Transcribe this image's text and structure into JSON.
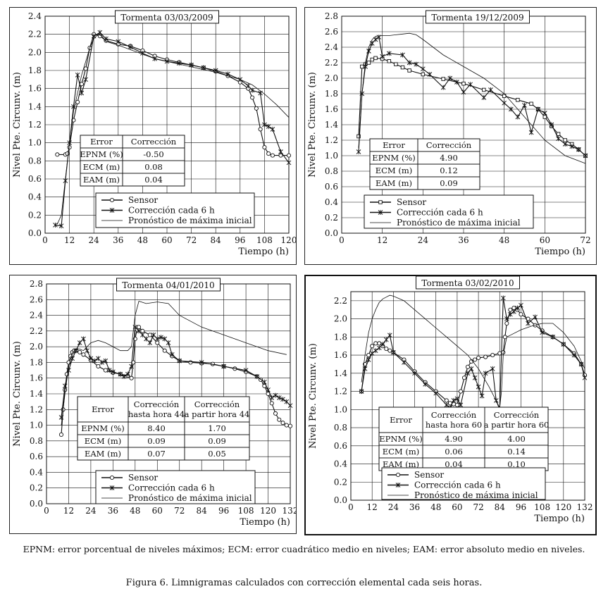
{
  "footnote": "EPNM: error porcentual de niveles máximos; ECM: error cuadrático medio en niveles; EAM: error absoluto medio en niveles.",
  "figure_caption": "Figura 6. Limnigramas calculados con corrección elemental cada seis horas.",
  "chart_data": [
    {
      "type": "line",
      "title": "Tormenta 03/03/2009",
      "xlabel": "Tiempo (h)",
      "ylabel": "Nivel Pte. Circunv. (m)",
      "xlim": [
        0,
        120
      ],
      "ylim": [
        0.0,
        2.4
      ],
      "xticks": [
        0,
        12,
        24,
        36,
        48,
        60,
        72,
        84,
        96,
        108,
        120
      ],
      "yticks": [
        0.0,
        0.2,
        0.4,
        0.6,
        0.8,
        1.0,
        1.2,
        1.4,
        1.6,
        1.8,
        2.0,
        2.2,
        2.4
      ],
      "legend": [
        "Sensor",
        "Corrección cada 6 h",
        "Pronóstico de máxima inicial"
      ],
      "error_table": {
        "headers": [
          "Error",
          "Corrección"
        ],
        "rows": [
          [
            "EPNM (%)",
            "-0.50"
          ],
          [
            "ECM (m)",
            "0.08"
          ],
          [
            "EAM (m)",
            "0.04"
          ]
        ]
      },
      "series": [
        {
          "name": "Sensor",
          "marker": "circle",
          "x": [
            6,
            10,
            11,
            12,
            14,
            16,
            18,
            20,
            22,
            24,
            27,
            30,
            36,
            42,
            48,
            54,
            60,
            66,
            72,
            78,
            84,
            90,
            96,
            100,
            102,
            104,
            106,
            108,
            110,
            112,
            116,
            120
          ],
          "y": [
            0.87,
            0.87,
            0.88,
            0.95,
            1.25,
            1.45,
            1.65,
            1.82,
            2.05,
            2.2,
            2.18,
            2.13,
            2.09,
            2.07,
            2.02,
            1.96,
            1.92,
            1.89,
            1.86,
            1.83,
            1.79,
            1.74,
            1.67,
            1.6,
            1.5,
            1.38,
            1.15,
            0.95,
            0.88,
            0.86,
            0.86,
            0.86
          ]
        },
        {
          "name": "Corrección cada 6 h",
          "marker": "x",
          "x": [
            5,
            8,
            10,
            12,
            14,
            16,
            18,
            20,
            24,
            27,
            30,
            36,
            42,
            48,
            54,
            60,
            66,
            72,
            78,
            84,
            90,
            96,
            100,
            102,
            106,
            108,
            110,
            112,
            116,
            120
          ],
          "y": [
            0.09,
            0.08,
            0.58,
            1.0,
            1.4,
            1.75,
            1.55,
            1.7,
            2.18,
            2.22,
            2.15,
            2.12,
            2.06,
            1.99,
            1.93,
            1.9,
            1.88,
            1.86,
            1.83,
            1.8,
            1.76,
            1.7,
            1.63,
            1.58,
            1.55,
            1.2,
            1.18,
            1.15,
            0.9,
            0.78
          ]
        },
        {
          "name": "Pronóstico de máxima inicial",
          "marker": "none",
          "x": [
            6,
            8,
            10,
            12,
            14,
            16,
            18,
            20,
            22,
            24,
            26,
            28,
            30,
            36,
            42,
            48,
            54,
            60,
            66,
            72,
            78,
            84,
            90,
            96,
            102,
            108,
            114,
            120
          ],
          "y": [
            0.1,
            0.2,
            0.6,
            1.0,
            1.35,
            1.55,
            1.75,
            1.9,
            2.05,
            2.15,
            2.2,
            2.18,
            2.12,
            2.08,
            2.03,
            1.98,
            1.93,
            1.9,
            1.87,
            1.84,
            1.81,
            1.78,
            1.74,
            1.7,
            1.64,
            1.54,
            1.42,
            1.28
          ]
        }
      ]
    },
    {
      "type": "line",
      "title": "Tormenta 19/12/2009",
      "xlabel": "Tiempo (h)",
      "ylabel": "Nivel Pte. Circunv. (m)",
      "xlim": [
        0,
        72
      ],
      "ylim": [
        0.0,
        2.8
      ],
      "xticks": [
        0,
        12,
        24,
        36,
        48,
        60,
        72
      ],
      "yticks": [
        0.0,
        0.2,
        0.4,
        0.6,
        0.8,
        1.0,
        1.2,
        1.4,
        1.6,
        1.8,
        2.0,
        2.2,
        2.4,
        2.6,
        2.8
      ],
      "legend": [
        "Sensor",
        "Corrección cada 6 h",
        "Pronóstico de máxima inicial"
      ],
      "error_table": {
        "headers": [
          "Error",
          "Corrección"
        ],
        "rows": [
          [
            "EPNM (%)",
            "4.90"
          ],
          [
            "ECM (m)",
            "0.12"
          ],
          [
            "EAM (m)",
            "0.09"
          ]
        ]
      },
      "series": [
        {
          "name": "Sensor",
          "marker": "square",
          "x": [
            5,
            6,
            7,
            8,
            9,
            10,
            12,
            14,
            16,
            18,
            20,
            24,
            30,
            36,
            42,
            48,
            52,
            56,
            58,
            60,
            62,
            64,
            66,
            68,
            70,
            72
          ],
          "y": [
            1.25,
            2.15,
            2.18,
            2.2,
            2.24,
            2.26,
            2.25,
            2.22,
            2.18,
            2.14,
            2.1,
            2.05,
            1.99,
            1.93,
            1.85,
            1.77,
            1.72,
            1.67,
            1.6,
            1.5,
            1.38,
            1.28,
            1.2,
            1.15,
            1.08,
            1.0
          ]
        },
        {
          "name": "Corrección cada 6 h",
          "marker": "x",
          "x": [
            5,
            6,
            7,
            8,
            9,
            10,
            11,
            12,
            14,
            18,
            20,
            22,
            24,
            26,
            30,
            32,
            34,
            36,
            38,
            42,
            44,
            48,
            50,
            52,
            54,
            56,
            58,
            60,
            62,
            64,
            66,
            68,
            70,
            72
          ],
          "y": [
            1.05,
            1.8,
            2.15,
            2.35,
            2.45,
            2.5,
            2.53,
            2.28,
            2.32,
            2.3,
            2.2,
            2.18,
            2.12,
            2.05,
            1.88,
            2.0,
            1.95,
            1.82,
            1.92,
            1.75,
            1.85,
            1.68,
            1.6,
            1.5,
            1.65,
            1.3,
            1.6,
            1.55,
            1.4,
            1.22,
            1.15,
            1.12,
            1.08,
            1.0
          ]
        },
        {
          "name": "Pronóstico de máxima inicial",
          "marker": "none",
          "x": [
            5,
            6,
            7,
            8,
            9,
            10,
            12,
            14,
            16,
            18,
            20,
            22,
            24,
            30,
            36,
            42,
            48,
            54,
            60,
            66,
            72
          ],
          "y": [
            1.1,
            1.8,
            2.2,
            2.4,
            2.5,
            2.54,
            2.55,
            2.55,
            2.56,
            2.57,
            2.58,
            2.56,
            2.5,
            2.3,
            2.15,
            2.0,
            1.8,
            1.5,
            1.2,
            1.0,
            0.9
          ]
        }
      ]
    },
    {
      "type": "line",
      "title": "Tormenta 04/01/2010",
      "xlabel": "Tiempo (h)",
      "ylabel": "Nivel Pte. Circunv. (m)",
      "xlim": [
        0,
        132
      ],
      "ylim": [
        0.0,
        2.8
      ],
      "xticks": [
        0,
        12,
        24,
        36,
        48,
        60,
        72,
        84,
        96,
        108,
        120,
        132
      ],
      "yticks": [
        0.0,
        0.2,
        0.4,
        0.6,
        0.8,
        1.0,
        1.2,
        1.4,
        1.6,
        1.8,
        2.0,
        2.2,
        2.4,
        2.6,
        2.8
      ],
      "legend": [
        "Sensor",
        "Corrección cada 6 h",
        "Pronóstico de máxima inicial"
      ],
      "error_table": {
        "headers": [
          "Error",
          "Corrección\nhasta hora 44",
          "Corrección\na partir hora 44"
        ],
        "rows": [
          [
            "EPNM (%)",
            "8.40",
            "1.70"
          ],
          [
            "ECM (m)",
            "0.09",
            "0.09"
          ],
          [
            "EAM (m)",
            "0.07",
            "0.05"
          ]
        ]
      },
      "series": [
        {
          "name": "Sensor",
          "marker": "circle",
          "x": [
            8,
            9,
            10,
            11,
            12,
            13,
            14,
            15,
            16,
            18,
            20,
            24,
            28,
            32,
            36,
            40,
            44,
            46,
            47,
            48,
            49,
            50,
            52,
            56,
            60,
            64,
            68,
            72,
            78,
            84,
            90,
            96,
            102,
            108,
            114,
            116,
            118,
            120,
            122,
            124,
            126,
            128,
            130,
            132
          ],
          "y": [
            0.88,
            1.2,
            1.45,
            1.65,
            1.8,
            1.88,
            1.93,
            1.95,
            1.95,
            1.93,
            1.9,
            1.83,
            1.75,
            1.7,
            1.67,
            1.65,
            1.63,
            1.6,
            1.8,
            2.1,
            2.22,
            2.25,
            2.2,
            2.15,
            2.05,
            1.95,
            1.88,
            1.82,
            1.8,
            1.79,
            1.78,
            1.75,
            1.72,
            1.68,
            1.62,
            1.58,
            1.5,
            1.4,
            1.28,
            1.15,
            1.07,
            1.03,
            1.0,
            0.99
          ]
        },
        {
          "name": "Corrección cada 6 h",
          "marker": "x",
          "x": [
            8,
            10,
            12,
            14,
            16,
            18,
            20,
            22,
            24,
            26,
            28,
            30,
            32,
            34,
            36,
            40,
            42,
            44,
            46,
            48,
            50,
            52,
            54,
            56,
            58,
            60,
            62,
            64,
            66,
            68,
            72,
            84,
            96,
            108,
            114,
            118,
            120,
            122,
            124,
            126,
            128,
            130,
            132
          ],
          "y": [
            1.1,
            1.5,
            1.7,
            1.85,
            1.95,
            2.05,
            2.1,
            1.95,
            1.85,
            1.82,
            1.85,
            1.8,
            1.82,
            1.7,
            1.68,
            1.65,
            1.62,
            1.65,
            1.75,
            2.25,
            2.2,
            2.15,
            2.1,
            2.05,
            2.15,
            2.1,
            2.12,
            2.1,
            2.05,
            1.9,
            1.82,
            1.8,
            1.75,
            1.7,
            1.62,
            1.55,
            1.45,
            1.35,
            1.38,
            1.35,
            1.33,
            1.3,
            1.25
          ]
        },
        {
          "name": "Pronóstico de máxima inicial",
          "marker": "none",
          "x": [
            8,
            10,
            12,
            14,
            16,
            18,
            20,
            24,
            28,
            32,
            36,
            40,
            44,
            46,
            48,
            50,
            54,
            60,
            66,
            72,
            84,
            96,
            108,
            120,
            130
          ],
          "y": [
            1.0,
            1.4,
            1.75,
            1.92,
            1.97,
            1.97,
            1.95,
            2.05,
            2.08,
            2.05,
            2.0,
            1.95,
            1.95,
            2.0,
            2.4,
            2.58,
            2.55,
            2.57,
            2.55,
            2.4,
            2.25,
            2.15,
            2.05,
            1.95,
            1.9
          ]
        }
      ]
    },
    {
      "type": "line",
      "title": "Tormenta 03/02/2010",
      "xlabel": "Tiempo (h)",
      "ylabel": "Nivel Pte. Circunv. (m)",
      "xlim": [
        0,
        132
      ],
      "ylim": [
        0.0,
        2.3
      ],
      "xticks": [
        0,
        12,
        24,
        36,
        48,
        60,
        72,
        84,
        96,
        108,
        120,
        132
      ],
      "yticks": [
        0.0,
        0.2,
        0.4,
        0.6,
        0.8,
        1.0,
        1.2,
        1.4,
        1.6,
        1.8,
        2.0,
        2.2
      ],
      "legend": [
        "Sensor",
        "Corrección cada 6 h",
        "Pronóstico de máxima inicial"
      ],
      "error_table": {
        "headers": [
          "Error",
          "Corrección\nhasta hora 60",
          "Corrección\na partir hora 60"
        ],
        "rows": [
          [
            "EPNM (%)",
            "4.90",
            "4.00"
          ],
          [
            "ECM (m)",
            "0.06",
            "0.14"
          ],
          [
            "EAM (m)",
            "0.04",
            "0.10"
          ]
        ]
      },
      "series": [
        {
          "name": "Sensor",
          "marker": "circle",
          "x": [
            6,
            8,
            10,
            12,
            14,
            16,
            18,
            20,
            22,
            24,
            30,
            36,
            42,
            48,
            54,
            56,
            58,
            60,
            62,
            64,
            66,
            68,
            70,
            72,
            76,
            80,
            84,
            86,
            87,
            88,
            90,
            92,
            94,
            96,
            100,
            104,
            108,
            114,
            120,
            126,
            130,
            132
          ],
          "y": [
            1.2,
            1.5,
            1.6,
            1.7,
            1.73,
            1.73,
            1.7,
            1.67,
            1.65,
            1.63,
            1.55,
            1.42,
            1.3,
            1.2,
            1.1,
            1.07,
            1.06,
            1.05,
            1.2,
            1.35,
            1.47,
            1.53,
            1.55,
            1.57,
            1.58,
            1.6,
            1.62,
            1.63,
            1.8,
            1.95,
            2.1,
            2.12,
            2.1,
            2.05,
            2.0,
            1.93,
            1.87,
            1.8,
            1.72,
            1.62,
            1.5,
            1.38
          ]
        },
        {
          "name": "Corrección cada 6 h",
          "marker": "x",
          "x": [
            6,
            8,
            10,
            12,
            14,
            16,
            18,
            20,
            22,
            24,
            30,
            36,
            42,
            48,
            54,
            56,
            58,
            60,
            62,
            66,
            68,
            70,
            72,
            74,
            76,
            80,
            82,
            84,
            86,
            88,
            90,
            92,
            94,
            96,
            100,
            104,
            108,
            114,
            120,
            126,
            130,
            132
          ],
          "y": [
            1.2,
            1.45,
            1.55,
            1.62,
            1.65,
            1.68,
            1.72,
            1.77,
            1.82,
            1.63,
            1.52,
            1.4,
            1.28,
            1.18,
            1.05,
            1.02,
            1.1,
            1.12,
            1.05,
            1.4,
            1.45,
            1.35,
            1.25,
            1.15,
            1.4,
            1.45,
            1.1,
            1.0,
            2.23,
            2.0,
            2.05,
            2.08,
            2.12,
            2.15,
            1.95,
            2.02,
            1.85,
            1.8,
            1.72,
            1.6,
            1.5,
            1.35
          ]
        },
        {
          "name": "Pronóstico de máxima inicial",
          "marker": "none",
          "x": [
            6,
            8,
            10,
            12,
            14,
            16,
            18,
            20,
            22,
            24,
            30,
            36,
            42,
            48,
            54,
            60,
            66,
            72,
            78,
            84,
            85,
            86,
            88,
            90,
            96,
            102,
            108,
            114,
            120,
            126,
            132
          ],
          "y": [
            1.3,
            1.6,
            1.85,
            2.0,
            2.1,
            2.18,
            2.22,
            2.24,
            2.26,
            2.25,
            2.2,
            2.1,
            2.0,
            1.9,
            1.8,
            1.7,
            1.6,
            1.45,
            1.25,
            1.02,
            1.2,
            1.6,
            1.8,
            1.82,
            1.88,
            1.92,
            1.95,
            1.95,
            1.85,
            1.7,
            1.45
          ]
        }
      ]
    }
  ]
}
